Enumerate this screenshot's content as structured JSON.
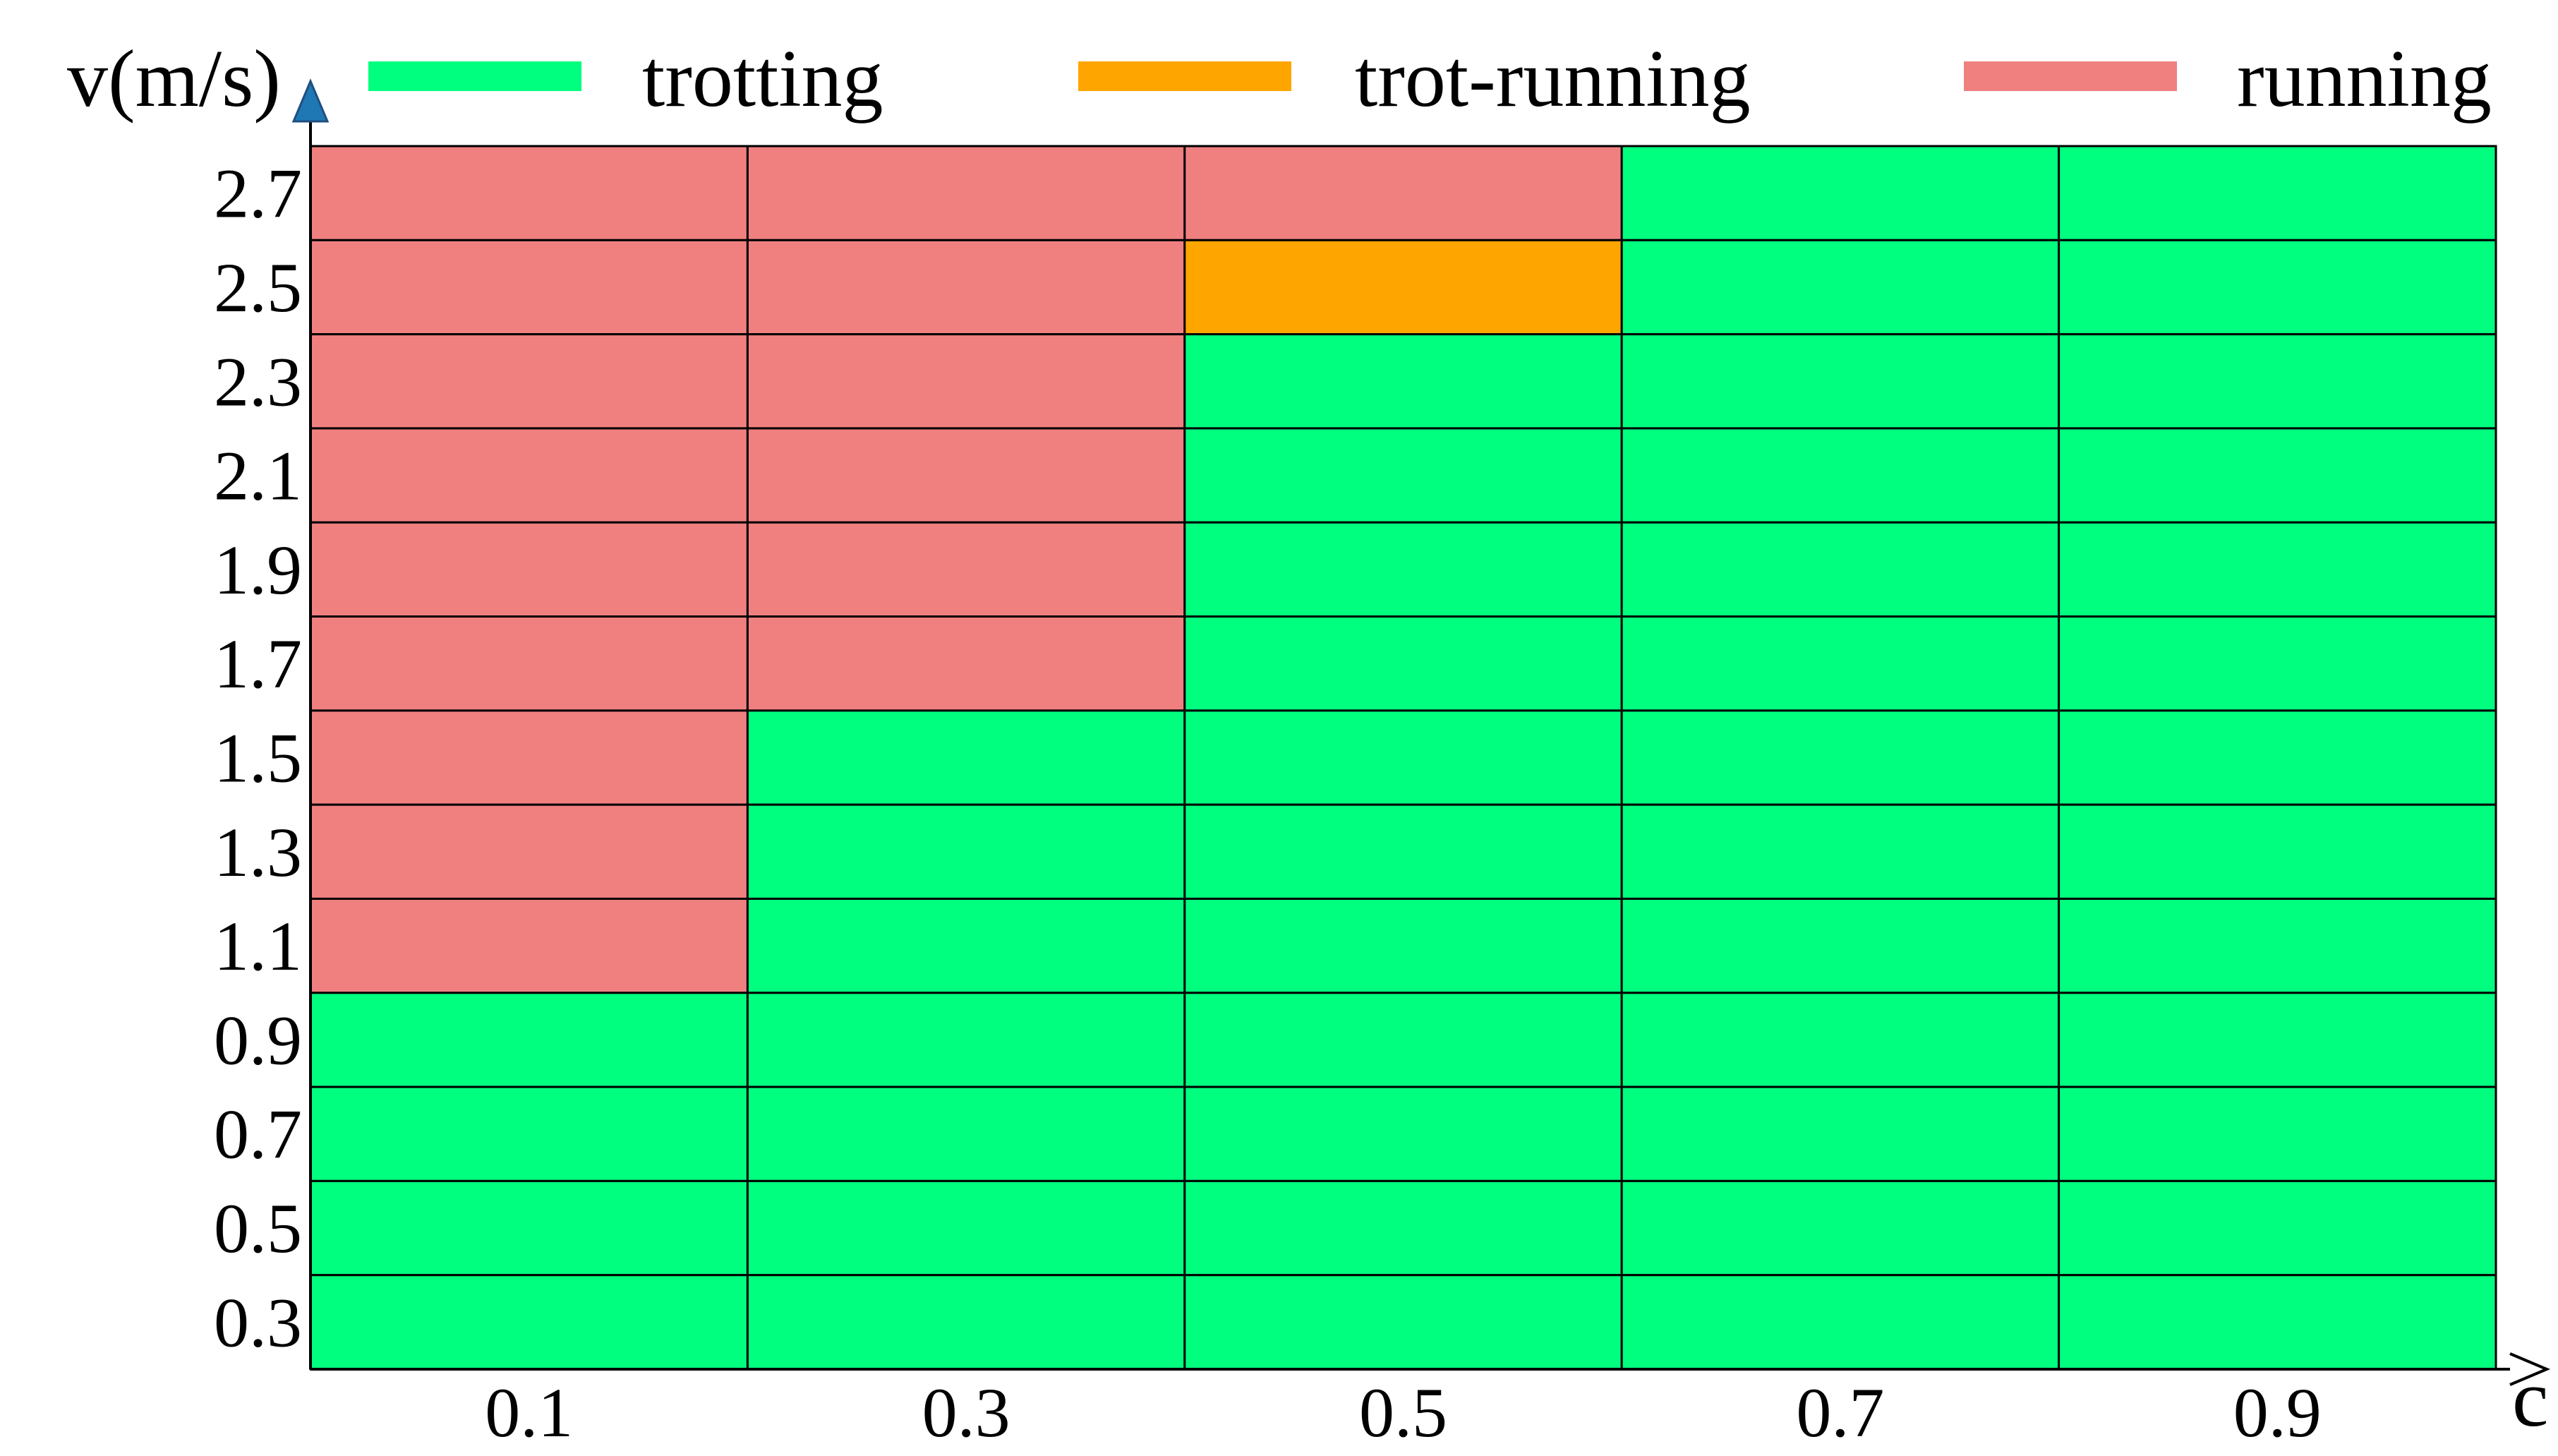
{
  "chart_data": {
    "type": "heatmap",
    "title": "",
    "xlabel": "c",
    "ylabel": "v(m/s)",
    "x_tick_labels": [
      "0.1",
      "0.3",
      "0.5",
      "0.7",
      "0.9"
    ],
    "y_tick_labels": [
      "2.7",
      "2.5",
      "2.3",
      "2.1",
      "1.9",
      "1.7",
      "1.5",
      "1.3",
      "1.1",
      "0.9",
      "0.7",
      "0.5",
      "0.3"
    ],
    "xlim": [
      0,
      1
    ],
    "legend_position": "top",
    "legend": [
      {
        "key": "T",
        "label": "trotting",
        "color": "#00ff7f"
      },
      {
        "key": "M",
        "label": "trot-running",
        "color": "#ffa500"
      },
      {
        "key": "R",
        "label": "running",
        "color": "#f08080"
      }
    ],
    "grid": [
      [
        "R",
        "R",
        "R",
        "T",
        "T"
      ],
      [
        "R",
        "R",
        "M",
        "T",
        "T"
      ],
      [
        "R",
        "R",
        "T",
        "T",
        "T"
      ],
      [
        "R",
        "R",
        "T",
        "T",
        "T"
      ],
      [
        "R",
        "R",
        "T",
        "T",
        "T"
      ],
      [
        "R",
        "R",
        "T",
        "T",
        "T"
      ],
      [
        "R",
        "T",
        "T",
        "T",
        "T"
      ],
      [
        "R",
        "T",
        "T",
        "T",
        "T"
      ],
      [
        "R",
        "T",
        "T",
        "T",
        "T"
      ],
      [
        "T",
        "T",
        "T",
        "T",
        "T"
      ],
      [
        "T",
        "T",
        "T",
        "T",
        "T"
      ],
      [
        "T",
        "T",
        "T",
        "T",
        "T"
      ],
      [
        "T",
        "T",
        "T",
        "T",
        "T"
      ]
    ]
  }
}
